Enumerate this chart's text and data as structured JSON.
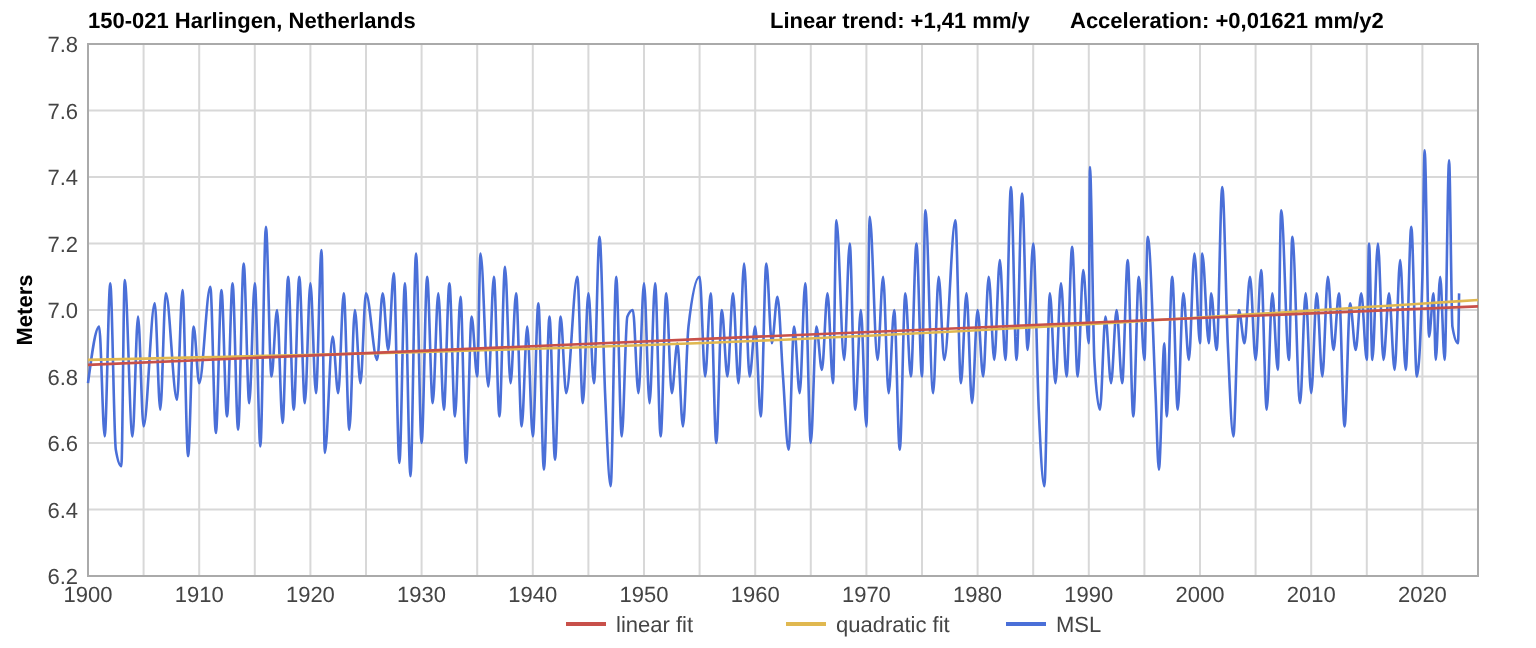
{
  "chart_data": {
    "type": "line",
    "title": "150-021 Harlingen, Netherlands",
    "annotations": [
      "Linear trend: +1,41 mm/y",
      "Acceleration: +0,01621 mm/y2"
    ],
    "ylabel": "Meters",
    "xlim": [
      1900,
      2025
    ],
    "xticks": [
      1900,
      {
        "value": 1905,
        "label": null
      },
      1910,
      {
        "value": 1915,
        "label": null
      },
      1920,
      {
        "value": 1925,
        "label": null
      },
      1930,
      {
        "value": 1935,
        "label": null
      },
      1940,
      {
        "value": 1945,
        "label": null
      },
      1950,
      {
        "value": 1955,
        "label": null
      },
      1960,
      {
        "value": 1965,
        "label": null
      },
      1970,
      {
        "value": 1975,
        "label": null
      },
      1980,
      {
        "value": 1985,
        "label": null
      },
      1990,
      {
        "value": 1995,
        "label": null
      },
      2000,
      {
        "value": 2005,
        "label": null
      },
      2010,
      {
        "value": 2015,
        "label": null
      },
      2020
    ],
    "ylim": [
      6.2,
      7.8
    ],
    "yticks": [
      6.2,
      6.4,
      6.6,
      6.8,
      {
        "value": 7,
        "label": "7.0"
      },
      7.2,
      7.4,
      7.6,
      7.8
    ],
    "grid": true,
    "legend": "bottom",
    "marker": "none",
    "line_style": "solid",
    "series": [
      {
        "name": "linear fit",
        "color": "#c8504a",
        "x": [
          1900,
          2025
        ],
        "values": [
          6.835,
          7.011
        ]
      },
      {
        "name": "quadratic fit",
        "color": "#e0b850",
        "x": [
          1900,
          1962,
          2025
        ],
        "values": [
          6.85,
          6.91,
          7.03
        ]
      },
      {
        "name": "MSL",
        "color": "#4a6fd8",
        "x": [
          1900,
          1901,
          1901.5,
          1902,
          1902.5,
          1903,
          1903.3,
          1904,
          1904.5,
          1905,
          1906,
          1906.5,
          1907,
          1908,
          1908.5,
          1909,
          1909.5,
          1910,
          1911,
          1911.5,
          1912,
          1912.5,
          1913,
          1913.5,
          1914,
          1914.5,
          1915,
          1915.5,
          1916,
          1916.5,
          1917,
          1917.5,
          1918,
          1918.5,
          1919,
          1919.5,
          1920,
          1920.5,
          1921,
          1921.3,
          1922,
          1922.5,
          1923,
          1923.5,
          1924,
          1924.5,
          1925,
          1926,
          1926.5,
          1927,
          1927.5,
          1928,
          1928.5,
          1929,
          1929.5,
          1930,
          1930.5,
          1931,
          1931.5,
          1932,
          1932.5,
          1933,
          1933.5,
          1934,
          1934.5,
          1935,
          1935.3,
          1936,
          1936.5,
          1937,
          1937.5,
          1938,
          1938.5,
          1939,
          1939.5,
          1940,
          1940.5,
          1941,
          1941.5,
          1942,
          1942.5,
          1943,
          1944,
          1944.5,
          1945,
          1945.5,
          1946,
          1946.5,
          1947,
          1947.5,
          1948,
          1948.5,
          1949,
          1949.5,
          1950,
          1950.5,
          1951,
          1951.5,
          1952,
          1952.5,
          1953,
          1953.5,
          1954,
          1955,
          1955.5,
          1956,
          1956.5,
          1957,
          1957.5,
          1958,
          1958.5,
          1959,
          1959.5,
          1960,
          1960.5,
          1961,
          1961.5,
          1962,
          1962.5,
          1963,
          1963.5,
          1964,
          1964.5,
          1965,
          1965.5,
          1966,
          1966.5,
          1967,
          1967.3,
          1968,
          1968.5,
          1969,
          1969.5,
          1970,
          1970.3,
          1971,
          1971.5,
          1972,
          1972.5,
          1973,
          1973.5,
          1974,
          1974.5,
          1975,
          1975.3,
          1976,
          1976.5,
          1977,
          1978,
          1978.5,
          1979,
          1979.5,
          1980,
          1980.5,
          1981,
          1981.5,
          1982,
          1982.5,
          1983,
          1983.5,
          1984,
          1984.5,
          1985,
          1985.5,
          1986,
          1986.5,
          1987,
          1987.5,
          1988,
          1988.5,
          1989,
          1989.5,
          1990,
          1990.1,
          1990.5,
          1991,
          1991.5,
          1992,
          1992.5,
          1993,
          1993.5,
          1994,
          1994.5,
          1995,
          1995.3,
          1996,
          1996.3,
          1996.8,
          1997,
          1997.5,
          1998,
          1998.5,
          1999,
          1999.5,
          2000,
          2000.2,
          2000.8,
          2001,
          2001.5,
          2002,
          2002.5,
          2003,
          2003.5,
          2004,
          2004.5,
          2005,
          2005.5,
          2006,
          2006.5,
          2007,
          2007.3,
          2008,
          2008.3,
          2009,
          2009.5,
          2010,
          2010.5,
          2011,
          2011.5,
          2012,
          2012.5,
          2013,
          2013.5,
          2014,
          2014.5,
          2015,
          2015.2,
          2015.5,
          2016,
          2016.5,
          2017,
          2017.5,
          2018,
          2018.5,
          2019,
          2019.5,
          2020,
          2020.2,
          2020.6,
          2021,
          2021.2,
          2021.6,
          2022,
          2022.4,
          2022.7,
          2023.2,
          2023.3
        ],
        "values": [
          6.78,
          6.95,
          6.62,
          7.08,
          6.58,
          6.53,
          7.09,
          6.62,
          6.98,
          6.65,
          7.02,
          6.7,
          7.05,
          6.73,
          7.06,
          6.56,
          6.95,
          6.78,
          7.07,
          6.63,
          7.06,
          6.68,
          7.08,
          6.64,
          7.14,
          6.72,
          7.08,
          6.59,
          7.25,
          6.8,
          7.0,
          6.66,
          7.1,
          6.7,
          7.1,
          6.72,
          7.08,
          6.75,
          7.18,
          6.57,
          6.92,
          6.75,
          7.05,
          6.64,
          7.0,
          6.78,
          7.05,
          6.85,
          7.05,
          6.88,
          7.11,
          6.54,
          7.08,
          6.5,
          7.17,
          6.6,
          7.1,
          6.72,
          7.05,
          6.7,
          7.08,
          6.68,
          7.04,
          6.54,
          6.98,
          6.8,
          7.17,
          6.77,
          7.1,
          6.68,
          7.13,
          6.78,
          7.05,
          6.65,
          6.95,
          6.62,
          7.02,
          6.52,
          6.98,
          6.55,
          6.98,
          6.75,
          7.1,
          6.72,
          7.05,
          6.78,
          7.22,
          6.75,
          6.47,
          7.1,
          6.62,
          6.98,
          7.0,
          6.75,
          7.08,
          6.72,
          7.08,
          6.62,
          7.05,
          6.75,
          6.9,
          6.65,
          6.95,
          7.1,
          6.8,
          7.05,
          6.6,
          7.0,
          6.8,
          7.05,
          6.78,
          7.14,
          6.8,
          6.95,
          6.68,
          7.14,
          6.9,
          7.04,
          6.8,
          6.58,
          6.95,
          6.75,
          7.08,
          6.6,
          6.95,
          6.82,
          7.05,
          6.78,
          7.27,
          6.85,
          7.2,
          6.7,
          7.0,
          6.65,
          7.28,
          6.85,
          7.1,
          6.75,
          7.0,
          6.58,
          7.05,
          6.8,
          7.2,
          6.8,
          7.3,
          6.75,
          7.1,
          6.85,
          7.27,
          6.78,
          7.05,
          6.72,
          7.0,
          6.8,
          7.1,
          6.85,
          7.15,
          6.85,
          7.37,
          6.85,
          7.35,
          6.88,
          7.2,
          6.7,
          6.47,
          7.05,
          6.78,
          7.08,
          6.8,
          7.19,
          6.8,
          7.12,
          6.9,
          7.43,
          6.85,
          6.7,
          6.98,
          6.78,
          7.0,
          6.78,
          7.15,
          6.68,
          7.1,
          6.85,
          7.22,
          6.75,
          6.52,
          6.9,
          6.68,
          7.1,
          6.7,
          7.05,
          6.85,
          7.17,
          6.9,
          7.17,
          6.9,
          7.05,
          6.88,
          7.37,
          6.9,
          6.62,
          7.0,
          6.9,
          7.1,
          6.85,
          7.12,
          6.7,
          7.05,
          6.82,
          7.3,
          6.85,
          7.22,
          6.72,
          7.05,
          6.75,
          7.05,
          6.8,
          7.1,
          6.88,
          7.05,
          6.65,
          7.02,
          6.88,
          7.05,
          6.85,
          7.2,
          6.85,
          7.2,
          6.85,
          7.05,
          6.82,
          7.15,
          6.82,
          7.25,
          6.8,
          7.1,
          7.48,
          6.92,
          7.05,
          6.85,
          7.1,
          6.85,
          7.45,
          6.95,
          6.9,
          7.05
        ]
      }
    ]
  }
}
